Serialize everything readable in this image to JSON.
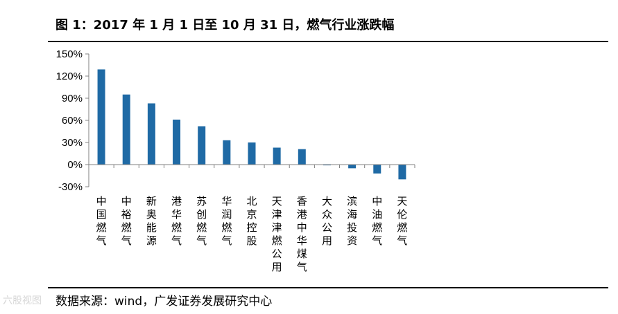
{
  "title": "图 1：2017 年 1 月 1 日至 10 月 31 日，燃气行业涨跌幅",
  "source": "数据来源：wind，广发证券发展研究中心",
  "watermark": "六股视图",
  "colors": {
    "bar": "#1f6aa5",
    "axis": "#808080",
    "rule": "#000000"
  },
  "chart_data": {
    "type": "bar",
    "title": "",
    "xlabel": "",
    "ylabel": "",
    "ylim": [
      -30,
      150
    ],
    "yticks": [
      -30,
      0,
      30,
      60,
      90,
      120,
      150
    ],
    "ytick_labels": [
      "-30%",
      "0%",
      "30%",
      "60%",
      "90%",
      "120%",
      "150%"
    ],
    "categories": [
      "中国燃气",
      "中裕燃气",
      "新奥能源",
      "港华燃气",
      "苏创燃气",
      "华润燃气",
      "北京控股",
      "天津津燃公用",
      "香港中华煤气",
      "大众公用",
      "滨海投资",
      "中油燃气",
      "天伦燃气"
    ],
    "values": [
      129,
      95,
      83,
      61,
      52,
      33,
      30,
      23,
      21,
      -1,
      -5,
      -12,
      -20
    ],
    "unit": "%"
  }
}
